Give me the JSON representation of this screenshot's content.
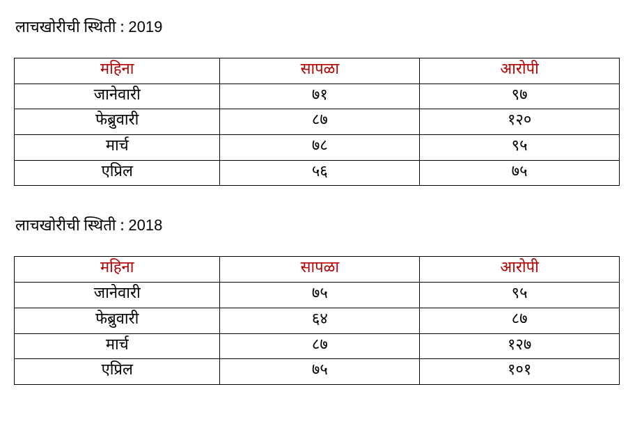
{
  "sections": [
    {
      "title_prefix": "लाचखोरीची स्थिती :",
      "title_year": "2019",
      "columns": [
        "महिना",
        "सापळा",
        "आरोपी"
      ],
      "rows": [
        [
          "जानेवारी",
          "७१",
          "९७"
        ],
        [
          "फेब्रुवारी",
          "८७",
          "१२०"
        ],
        [
          "मार्च",
          "७८",
          "९५"
        ],
        [
          "एप्रिल",
          "५६",
          "७५"
        ]
      ]
    },
    {
      "title_prefix": "लाचखोरीची स्थिती :",
      "title_year": "2018",
      "columns": [
        "महिना",
        "सापळा",
        "आरोपी"
      ],
      "rows": [
        [
          "जानेवारी",
          "७५",
          "९५"
        ],
        [
          "फेब्रुवारी",
          "६४",
          "८७"
        ],
        [
          "मार्च",
          "८७",
          "१२७"
        ],
        [
          "एप्रिल",
          "७५",
          "१०१"
        ]
      ]
    }
  ],
  "colors": {
    "header_text": "#b30000",
    "body_text": "#000000",
    "border": "#000000",
    "background": "#ffffff"
  }
}
